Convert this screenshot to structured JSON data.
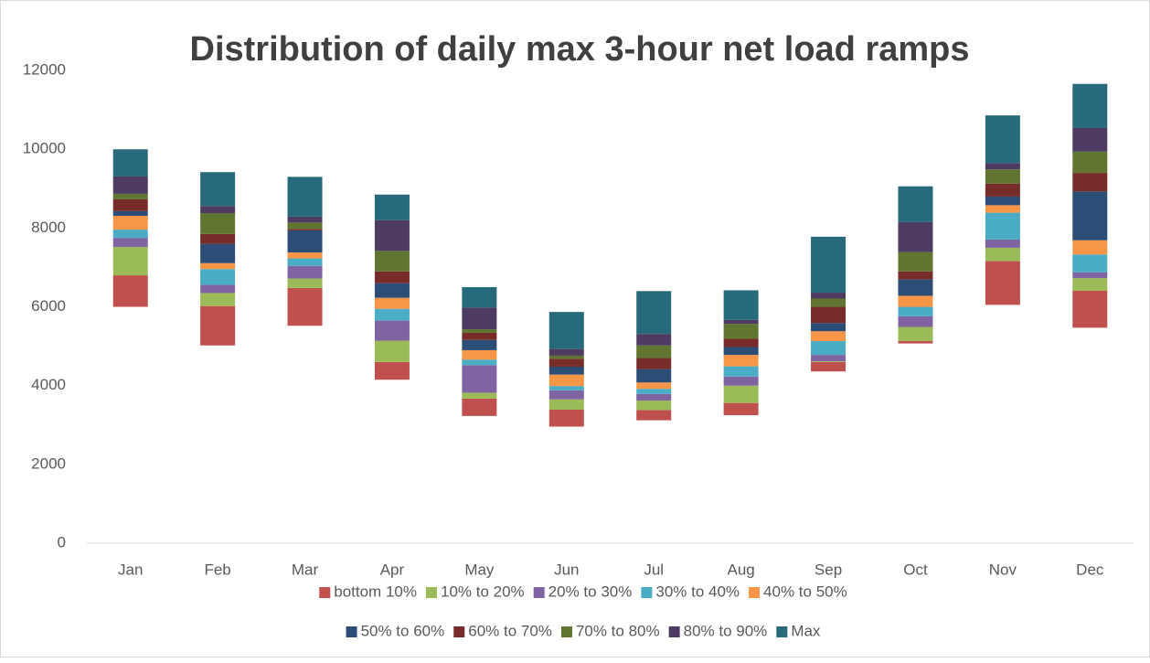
{
  "chart_data": {
    "type": "stacked-floating-bar",
    "title": "Distribution of daily max 3-hour net load ramps",
    "categories": [
      "Jan",
      "Feb",
      "Mar",
      "Apr",
      "May",
      "Jun",
      "Jul",
      "Aug",
      "Sep",
      "Oct",
      "Nov",
      "Dec"
    ],
    "ylim": [
      0,
      13000
    ],
    "yticks": [
      0,
      2000,
      4000,
      6000,
      8000,
      10000,
      12000
    ],
    "grid": false,
    "series": [
      {
        "name": null,
        "values": [
          6000,
          5020,
          5520,
          4150,
          3230,
          2960,
          3120,
          3250,
          4360,
          5070,
          6050,
          5470
        ]
      },
      {
        "name": "bottom 10%",
        "color": "#c0504d",
        "values": [
          800,
          1000,
          960,
          450,
          440,
          430,
          260,
          310,
          240,
          60,
          1110,
          940
        ]
      },
      {
        "name": "10% to 20%",
        "color": "#9bbb59",
        "values": [
          720,
          330,
          240,
          540,
          150,
          260,
          240,
          440,
          20,
          360,
          340,
          320
        ]
      },
      {
        "name": "20% to 30%",
        "color": "#8064a2",
        "values": [
          230,
          210,
          320,
          510,
          700,
          230,
          170,
          230,
          160,
          270,
          210,
          150
        ]
      },
      {
        "name": "30% to 40%",
        "color": "#4bacc6",
        "values": [
          210,
          400,
          190,
          300,
          140,
          110,
          130,
          260,
          350,
          240,
          680,
          450
        ]
      },
      {
        "name": "40% to 50%",
        "color": "#f79646",
        "values": [
          350,
          150,
          150,
          280,
          240,
          290,
          160,
          290,
          250,
          280,
          190,
          360
        ]
      },
      {
        "name": "50% to 60%",
        "color": "#2c4d75",
        "values": [
          120,
          490,
          560,
          370,
          260,
          200,
          340,
          200,
          210,
          420,
          220,
          1240
        ]
      },
      {
        "name": "60% to 70%",
        "color": "#772c2a",
        "values": [
          300,
          250,
          40,
          300,
          180,
          200,
          280,
          210,
          410,
          200,
          330,
          470
        ]
      },
      {
        "name": "70% to 80%",
        "color": "#5f7530",
        "values": [
          140,
          530,
          160,
          520,
          90,
          80,
          320,
          380,
          210,
          490,
          360,
          540
        ]
      },
      {
        "name": "80% to 90%",
        "color": "#4d3b62",
        "values": [
          440,
          180,
          150,
          780,
          550,
          170,
          290,
          100,
          150,
          760,
          160,
          600
        ]
      },
      {
        "name": "Max",
        "color": "#276a7c",
        "values": [
          690,
          860,
          1010,
          650,
          520,
          940,
          1090,
          750,
          1420,
          910,
          1210,
          1120
        ]
      }
    ]
  }
}
